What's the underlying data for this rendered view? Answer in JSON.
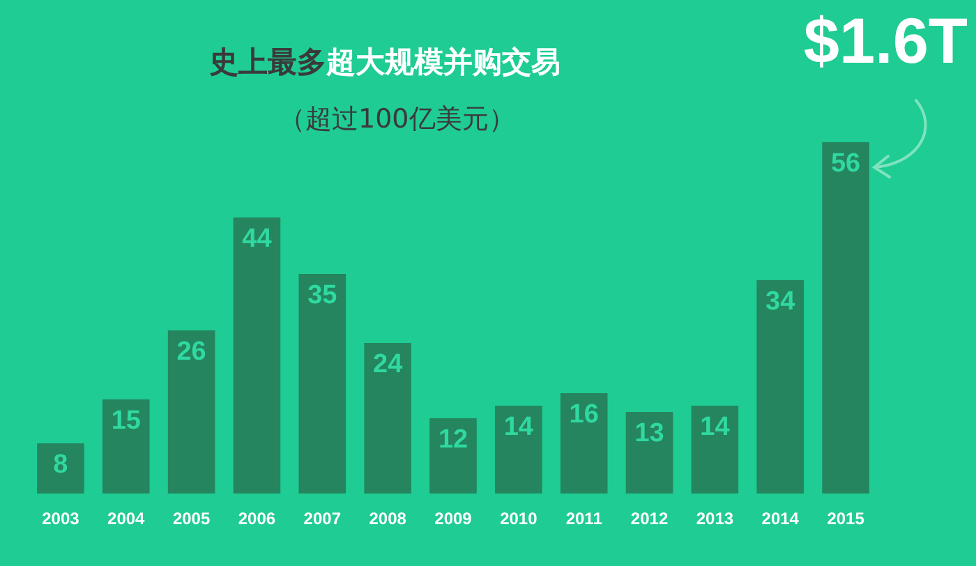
{
  "chart_data": {
    "type": "bar",
    "title": "史上最多超大规模并购交易",
    "subtitle": "（超过100亿美元）",
    "categories": [
      "2003",
      "2004",
      "2005",
      "2006",
      "2007",
      "2008",
      "2009",
      "2010",
      "2011",
      "2012",
      "2013",
      "2014",
      "2015"
    ],
    "values": [
      8,
      15,
      26,
      44,
      35,
      24,
      12,
      14,
      16,
      13,
      14,
      34,
      56
    ],
    "color": "#24855f",
    "data_labels": true,
    "tick_labels": "x",
    "annotations": [
      "$1.6T"
    ]
  }
}
